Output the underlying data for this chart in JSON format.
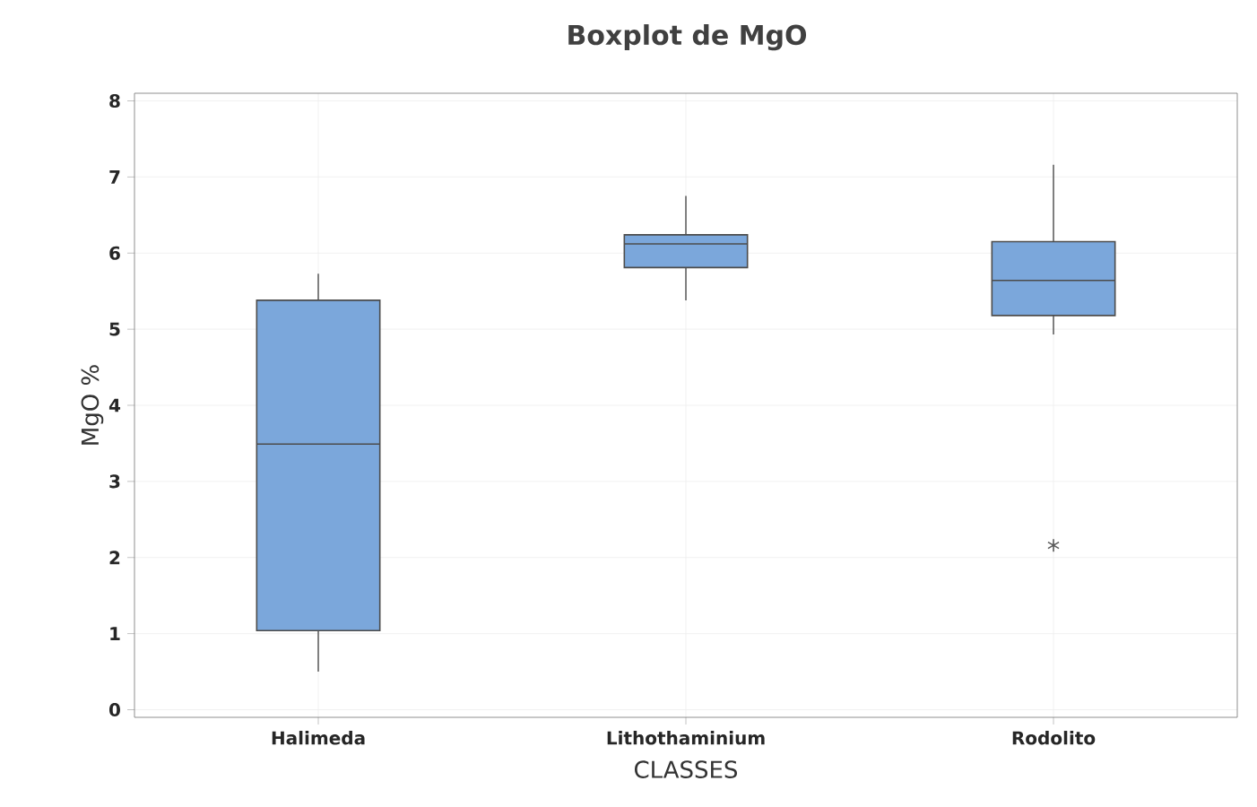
{
  "chart_data": {
    "type": "box",
    "title": "Boxplot de MgO",
    "xlabel": "CLASSES",
    "ylabel": "MgO %",
    "categories": [
      "Halimeda",
      "Lithothaminium",
      "Rodolito"
    ],
    "color": "#7ba7db",
    "boxes": [
      {
        "low": 0.5,
        "q1": 1.04,
        "median": 3.49,
        "q3": 5.38,
        "high": 5.73
      },
      {
        "low": 5.38,
        "q1": 5.81,
        "median": 6.12,
        "q3": 6.24,
        "high": 6.75
      },
      {
        "low": 4.93,
        "q1": 5.18,
        "median": 5.64,
        "q3": 6.15,
        "high": 7.16,
        "outliers": [
          2.16
        ]
      }
    ],
    "ylim": [
      -0.1,
      8.1
    ],
    "yticks": [
      0,
      1,
      2,
      3,
      4,
      5,
      6,
      7,
      8
    ],
    "grid": true,
    "marker": "star"
  }
}
